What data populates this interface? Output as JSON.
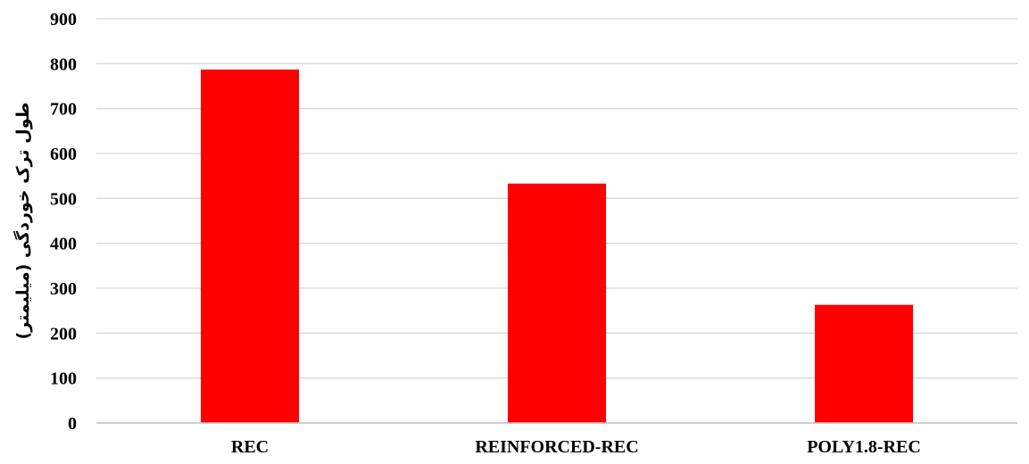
{
  "chart_data": {
    "type": "bar",
    "title": "",
    "xlabel": "",
    "ylabel": "طول ترک خوردگی (میلیمتر)",
    "categories": [
      "REC",
      "REINFORCED-REC",
      "POLY1.8-REC"
    ],
    "values": [
      787,
      533,
      263
    ],
    "ylim": [
      0,
      900
    ],
    "y_ticks": [
      0,
      100,
      200,
      300,
      400,
      500,
      600,
      700,
      800,
      900
    ],
    "grid": true,
    "legend": "none",
    "colors": {
      "bar": "#ff0000",
      "grid": "#d9d9d9",
      "axis": "#bfbfbf"
    }
  }
}
